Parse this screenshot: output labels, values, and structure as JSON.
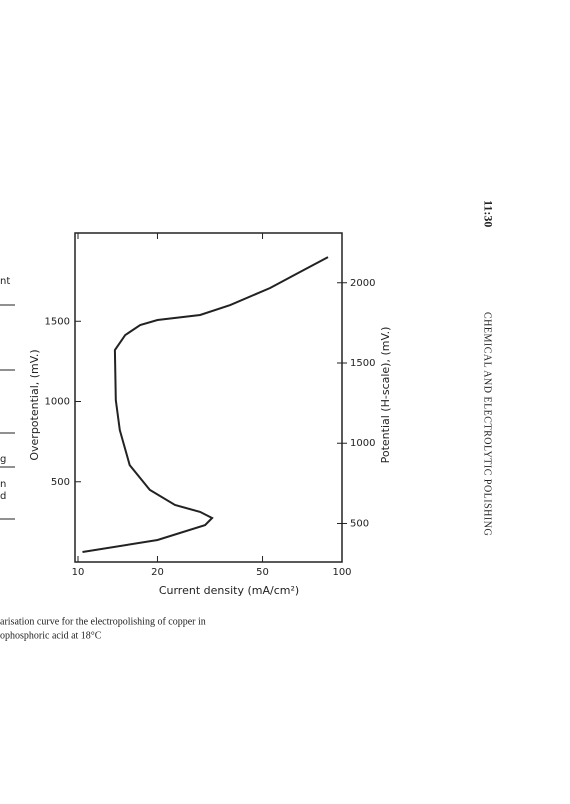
{
  "page": {
    "side_fragments": [
      "nt",
      "g",
      "n",
      "d"
    ],
    "caption": [
      "arisation curve for the electropolishing of copper in",
      "ophosphoric acid at 18°C"
    ],
    "running_head": {
      "page": "11:30",
      "title": "CHEMICAL AND ELECTROLYTIC POLISHING"
    }
  },
  "chart_data": {
    "type": "line",
    "xlabel": "Current density (mA/cm²)",
    "ylabel": "Overpotential, (mV.)",
    "y2label": "Potential (H-scale), (mV.)",
    "xscale": "log",
    "xlim": [
      10,
      100
    ],
    "xticks": [
      10,
      20,
      50,
      100
    ],
    "ylim": [
      0,
      2050
    ],
    "yticks": [
      500,
      1000,
      1500
    ],
    "y2lim": [
      260,
      2310
    ],
    "y2ticks": [
      500,
      1000,
      1500,
      2000
    ],
    "series": [
      {
        "color": "#222222",
        "x": [
          10.4,
          20,
          30.3,
          32.2,
          29,
          23.3,
          18.7,
          15.7,
          14.4,
          13.9,
          13.8,
          15.1,
          17.2,
          20,
          29,
          37.7,
          53.4,
          69.3,
          88.5
        ],
        "values": [
          62,
          137,
          230,
          274,
          312,
          355,
          449,
          604,
          822,
          1009,
          1321,
          1414,
          1477,
          1508,
          1539,
          1601,
          1707,
          1807,
          1900
        ]
      }
    ]
  }
}
